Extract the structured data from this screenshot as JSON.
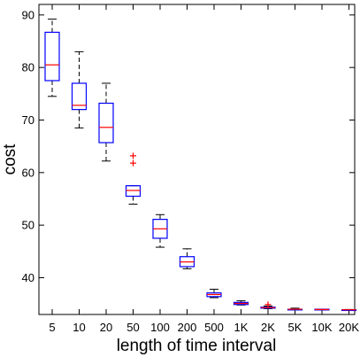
{
  "chart_data": {
    "type": "box",
    "xlabel": "length of time interval",
    "ylabel": "cost",
    "categories": [
      "5",
      "10",
      "20",
      "50",
      "100",
      "200",
      "500",
      "1K",
      "2K",
      "5K",
      "10K",
      "20K"
    ],
    "ylim": [
      33,
      92
    ],
    "yticks": [
      40,
      50,
      60,
      70,
      80,
      90
    ],
    "grid": false,
    "colors": {
      "box": "#0000ff",
      "median": "#ff0000",
      "whisker": "#000000",
      "outlier": "#ff0000",
      "axis": "#000000"
    },
    "boxes": [
      {
        "category": "5",
        "whisker_low": 74.5,
        "q1": 77.5,
        "median": 80.5,
        "q3": 86.7,
        "whisker_high": 89.2,
        "outliers": []
      },
      {
        "category": "10",
        "whisker_low": 68.5,
        "q1": 72.0,
        "median": 72.8,
        "q3": 77.0,
        "whisker_high": 83.0,
        "outliers": []
      },
      {
        "category": "20",
        "whisker_low": 62.2,
        "q1": 65.7,
        "median": 68.6,
        "q3": 73.2,
        "whisker_high": 77.0,
        "outliers": []
      },
      {
        "category": "50",
        "whisker_low": 54.0,
        "q1": 55.5,
        "median": 56.6,
        "q3": 57.5,
        "whisker_high": 57.5,
        "outliers": [
          61.8,
          63.2
        ]
      },
      {
        "category": "100",
        "whisker_low": 45.8,
        "q1": 47.5,
        "median": 49.3,
        "q3": 51.1,
        "whisker_high": 52.0,
        "outliers": []
      },
      {
        "category": "200",
        "whisker_low": 41.7,
        "q1": 42.1,
        "median": 43.0,
        "q3": 44.0,
        "whisker_high": 45.5,
        "outliers": []
      },
      {
        "category": "500",
        "whisker_low": 36.2,
        "q1": 36.4,
        "median": 36.8,
        "q3": 37.1,
        "whisker_high": 37.8,
        "outliers": []
      },
      {
        "category": "1K",
        "whisker_low": 34.8,
        "q1": 34.9,
        "median": 35.1,
        "q3": 35.3,
        "whisker_high": 35.6,
        "outliers": []
      },
      {
        "category": "2K",
        "whisker_low": 34.1,
        "q1": 34.2,
        "median": 34.3,
        "q3": 34.4,
        "whisker_high": 34.6,
        "outliers": [
          34.9
        ]
      },
      {
        "category": "5K",
        "whisker_low": 33.9,
        "q1": 34.0,
        "median": 34.0,
        "q3": 34.0,
        "whisker_high": 34.2,
        "outliers": []
      },
      {
        "category": "10K",
        "whisker_low": 33.9,
        "q1": 33.9,
        "median": 33.95,
        "q3": 34.0,
        "whisker_high": 34.0,
        "outliers": []
      },
      {
        "category": "20K",
        "whisker_low": 33.85,
        "q1": 33.85,
        "median": 33.9,
        "q3": 33.9,
        "whisker_high": 33.95,
        "outliers": []
      }
    ]
  }
}
